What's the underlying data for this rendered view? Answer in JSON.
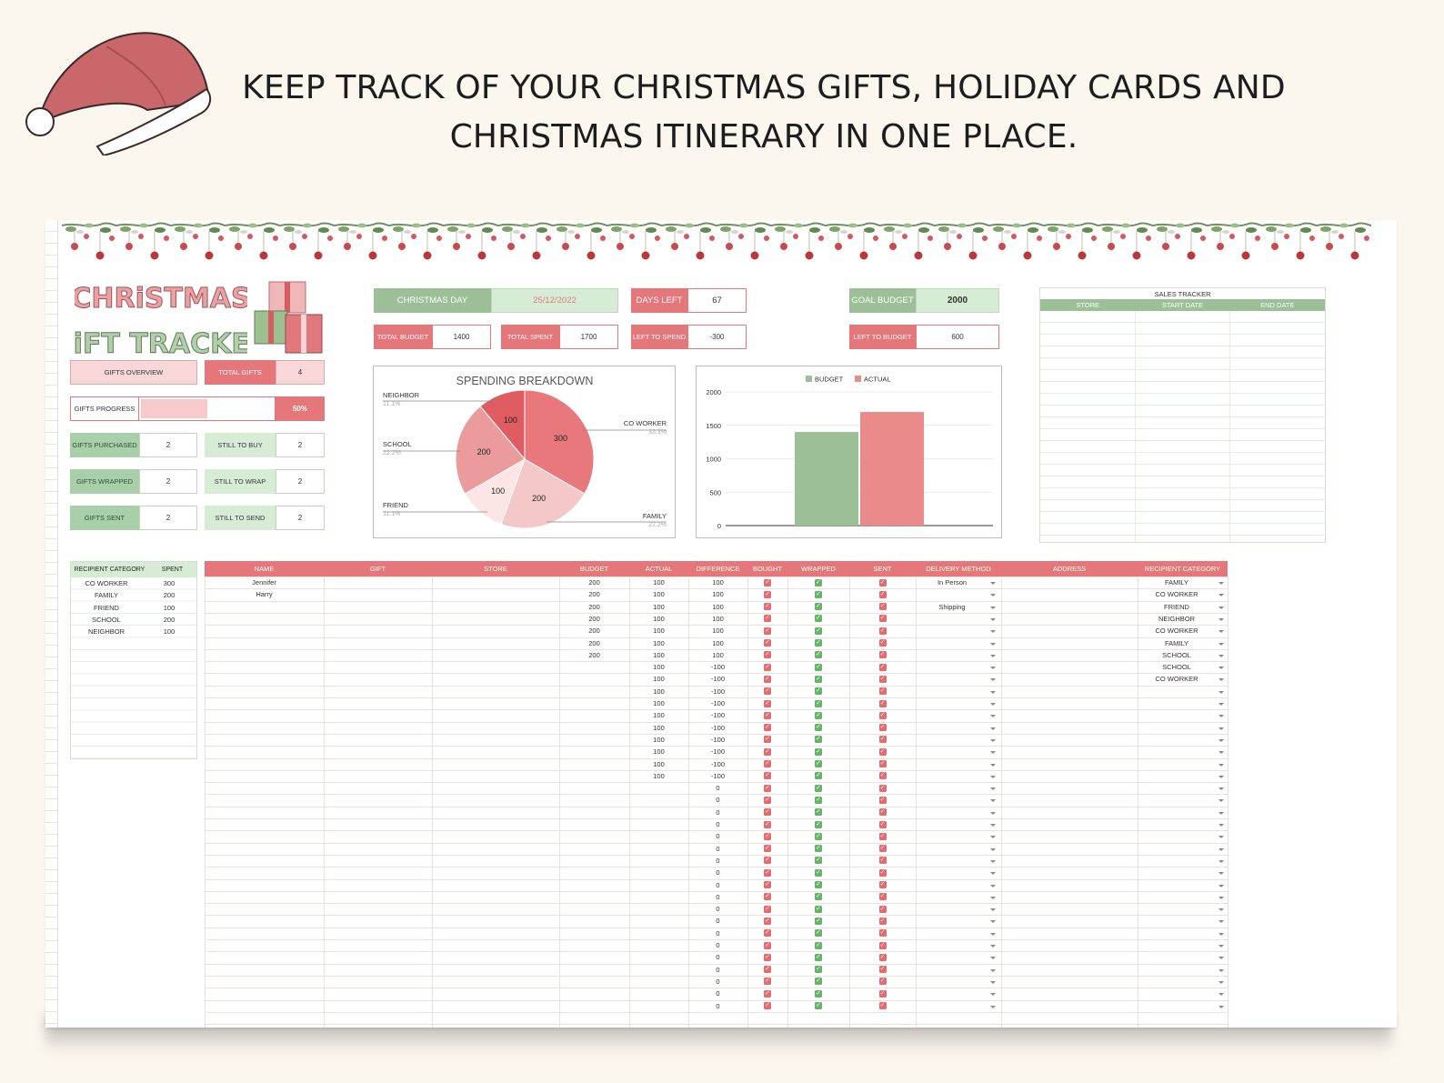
{
  "headline": {
    "line1": "KEEP TRACK OF YOUR CHRISTMAS GIFTS, HOLIDAY CARDS AND",
    "line2": "CHRISTMAS ITINERARY IN ONE PLACE."
  },
  "brand": {
    "title_line1": "CHRiSTMAS",
    "title_line2": "GiFT TRACKER"
  },
  "colors": {
    "red": "#e5767a",
    "pink": "#f8d7d8",
    "green": "#a9ceaa",
    "light_green": "#d7ecd5",
    "budget_bar": "#9cbf98",
    "actual_bar": "#ea8a8a"
  },
  "summary": {
    "christmas_day_label": "CHRISTMAS DAY",
    "christmas_day_value": "25/12/2022",
    "days_left_label": "DAYS LEFT",
    "days_left_value": "67",
    "goal_budget_label": "GOAL BUDGET",
    "goal_budget_value": "2000",
    "total_budget_label": "TOTAL BUDGET",
    "total_budget_value": "1400",
    "total_spent_label": "TOTAL SPENT",
    "total_spent_value": "1700",
    "left_to_spend_label": "LEFT TO SPEND",
    "left_to_spend_value": "-300",
    "left_to_budget_label": "LEFT TO BUDGET",
    "left_to_budget_value": "600"
  },
  "overview": {
    "gifts_overview": "GIFTS OVERVIEW",
    "total_gifts_label": "TOTAL GIFTS",
    "total_gifts_value": "4",
    "progress_label": "GIFTS PROGRESS",
    "progress_value": "50%",
    "progress_fraction": 0.5,
    "purchased_label": "GIFTS PURCHASED",
    "purchased_value": "2",
    "to_buy_label": "STILL TO BUY",
    "to_buy_value": "2",
    "wrapped_label": "GIFTS WRAPPED",
    "wrapped_value": "2",
    "to_wrap_label": "STILL TO WRAP",
    "to_wrap_value": "2",
    "sent_label": "GIFTS SENT",
    "sent_value": "2",
    "to_send_label": "STILL TO SEND",
    "to_send_value": "2"
  },
  "chart_data": [
    {
      "type": "pie",
      "title": "SPENDING BREAKDOWN",
      "slices": [
        {
          "label": "CO WORKER",
          "value": 300,
          "pct": "33.3%",
          "color": "#e9787c"
        },
        {
          "label": "FAMILY",
          "value": 200,
          "pct": "22.2%",
          "color": "#f4c8c9"
        },
        {
          "label": "FRIEND",
          "value": 100,
          "pct": "11.1%",
          "color": "#fbe5e5"
        },
        {
          "label": "SCHOOL",
          "value": 200,
          "pct": "22.2%",
          "color": "#ec9b9d"
        },
        {
          "label": "NEIGHBOR",
          "value": 100,
          "pct": "11.1%",
          "color": "#df5d62"
        }
      ]
    },
    {
      "type": "bar",
      "categories": [
        ""
      ],
      "series": [
        {
          "name": "BUDGET",
          "values": [
            1400
          ],
          "color": "#9cbf98"
        },
        {
          "name": "ACTUAL",
          "values": [
            1700
          ],
          "color": "#ea8a8a"
        }
      ],
      "yticks": [
        0,
        500,
        1000,
        1500,
        2000
      ],
      "ylim": [
        0,
        2000
      ],
      "legend": "top"
    }
  ],
  "sales_tracker": {
    "title": "SALES TRACKER",
    "columns": [
      "STORE",
      "START DATE",
      "END DATE"
    ]
  },
  "category_table": {
    "headers": [
      "RECIPIENT CATEGORY",
      "SPENT"
    ],
    "rows": [
      [
        "CO WORKER",
        "300"
      ],
      [
        "FAMILY",
        "200"
      ],
      [
        "FRIEND",
        "100"
      ],
      [
        "SCHOOL",
        "200"
      ],
      [
        "NEIGHBOR",
        "100"
      ]
    ]
  },
  "gift_table": {
    "headers": [
      "NAME",
      "GIFT",
      "STORE",
      "BUDGET",
      "ACTUAL",
      "DIFFERENCE",
      "BOUGHT",
      "WRAPPED",
      "SENT",
      "DELIVERY METHOD",
      "ADDRESS",
      "RECIPIENT CATEGORY"
    ],
    "names": [
      "Jennifer",
      "Harry"
    ],
    "budget": [
      "200",
      "200",
      "200",
      "200",
      "200",
      "200",
      "200"
    ],
    "actual": [
      "100",
      "100",
      "100",
      "100",
      "100",
      "100",
      "100",
      "100",
      "100",
      "100",
      "100",
      "100",
      "100",
      "100",
      "100",
      "100",
      "100"
    ],
    "difference": [
      "100",
      "100",
      "100",
      "100",
      "100",
      "100",
      "100",
      "-100",
      "-100",
      "-100",
      "-100",
      "-100",
      "-100",
      "-100",
      "-100",
      "-100",
      "-100",
      "0",
      "0",
      "0",
      "0",
      "0",
      "0",
      "0",
      "0",
      "0",
      "0",
      "0",
      "0",
      "0",
      "0",
      "0",
      "0",
      "0",
      "0",
      "0"
    ],
    "delivery": [
      "In Person",
      "",
      "Shipping"
    ],
    "category": [
      "FAMILY",
      "CO WORKER",
      "FRIEND",
      "NEIGHBOR",
      "CO WORKER",
      "FAMILY",
      "SCHOOL",
      "SCHOOL",
      "CO WORKER"
    ],
    "checkbox_rows": 36
  }
}
